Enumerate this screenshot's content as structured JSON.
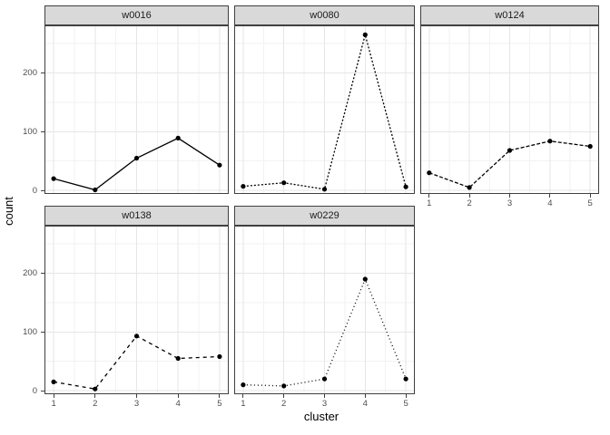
{
  "chart_data": {
    "type": "line",
    "title": "",
    "xlabel": "cluster",
    "ylabel": "count",
    "x": [
      1,
      2,
      3,
      4,
      5
    ],
    "x_ticks": [
      1,
      2,
      3,
      4,
      5
    ],
    "x_minor_ticks": [
      1.5,
      2.5,
      3.5,
      4.5
    ],
    "y_ticks": [
      0,
      100,
      200
    ],
    "y_minor_ticks": [
      50,
      150,
      250
    ],
    "xlim": [
      0.78,
      5.22
    ],
    "ylim": [
      -6,
      281
    ],
    "grid": true,
    "legend_position": "none",
    "facet_layout": "wrap-2rows-3cols",
    "facets": [
      {
        "label": "w0016",
        "linetype": "solid",
        "dash": "",
        "values": [
          20,
          1,
          55,
          89,
          43
        ],
        "row": 0,
        "col": 0,
        "y_axis": true,
        "x_axis": false
      },
      {
        "label": "w0080",
        "linetype": "22",
        "dash": "2,2",
        "values": [
          7,
          13,
          2,
          265,
          6
        ],
        "row": 0,
        "col": 1,
        "y_axis": false,
        "x_axis": false
      },
      {
        "label": "w0124",
        "linetype": "42",
        "dash": "4,2",
        "values": [
          30,
          5,
          68,
          84,
          75
        ],
        "row": 0,
        "col": 2,
        "y_axis": false,
        "x_axis": true
      },
      {
        "label": "w0138",
        "linetype": "44",
        "dash": "4,4",
        "values": [
          15,
          3,
          93,
          55,
          58
        ],
        "row": 1,
        "col": 0,
        "y_axis": true,
        "x_axis": true
      },
      {
        "label": "w0229",
        "linetype": "dotted",
        "dash": "1,3",
        "values": [
          10,
          8,
          20,
          190,
          20
        ],
        "row": 1,
        "col": 1,
        "y_axis": false,
        "x_axis": true
      }
    ],
    "colors": {
      "strip_fill": "#d9d9d9",
      "strip_border": "#404040",
      "panel_border": "#404040",
      "panel_fill": "#ffffff",
      "grid_major": "#e6e6e6",
      "grid_minor": "#f2f2f2",
      "series": "#000000",
      "tick_text": "#4d4d4d",
      "title_text": "#000000"
    }
  }
}
